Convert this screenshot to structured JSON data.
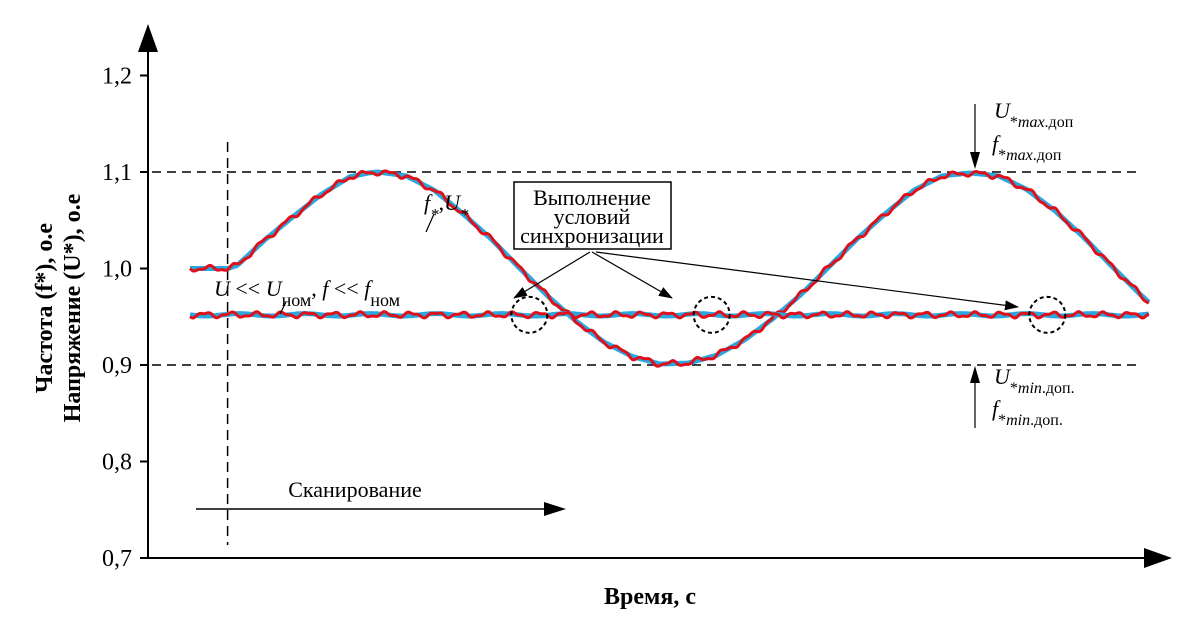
{
  "chart_data": {
    "type": "line",
    "xlabel": "Время, с",
    "ylabel_line1": "Частота (f*), о.е",
    "ylabel_line2": "Напряжение (U*), о.е",
    "y_ticks": [
      "0,7",
      "0,8",
      "0,9",
      "1,0",
      "1,1",
      "1,2"
    ],
    "y_tick_values": [
      0.7,
      0.8,
      0.9,
      1.0,
      1.1,
      1.2
    ],
    "ylim": [
      0.7,
      1.25
    ],
    "xlim": [
      0,
      100
    ],
    "grid": false,
    "reference_lines": [
      {
        "y": 1.1,
        "style": "dashed"
      },
      {
        "y": 0.9,
        "style": "dashed"
      }
    ],
    "scan_start_x": 4,
    "series": [
      {
        "name": "f*, U*",
        "color_reference": "#29a8e0",
        "color_measured": "#e0101b",
        "x": [
          0,
          4,
          5,
          8,
          11,
          14,
          17,
          19,
          20,
          23,
          26,
          29,
          32,
          35,
          38,
          41,
          44,
          47,
          50,
          53,
          56,
          59,
          62,
          65,
          68,
          71,
          74,
          77,
          80,
          83,
          86,
          89,
          92,
          95,
          98,
          101,
          102
        ],
        "values": [
          1.0,
          1.0,
          1.003,
          1.03,
          1.054,
          1.077,
          1.095,
          1.099,
          1.1,
          1.096,
          1.081,
          1.057,
          1.031,
          1.001,
          0.972,
          0.946,
          0.924,
          0.909,
          0.901,
          0.902,
          0.91,
          0.926,
          0.948,
          0.973,
          1.002,
          1.031,
          1.057,
          1.081,
          1.096,
          1.099,
          1.096,
          1.082,
          1.06,
          1.033,
          1.003,
          0.974,
          0.965
        ]
      },
      {
        "name": "U << Uном, f << fном",
        "color_reference": "#29a8e0",
        "color_measured": "#e0101b",
        "x": [
          0,
          102
        ],
        "values": [
          0.952,
          0.952
        ]
      }
    ],
    "sync_points": [
      {
        "x": 36.1,
        "y": 0.952
      },
      {
        "x": 55.5,
        "y": 0.952
      },
      {
        "x": 91.2,
        "y": 0.952
      }
    ]
  },
  "annotations": {
    "series_label_f": "f",
    "series_label_sub": "*",
    "series_label_sep": ",",
    "series_label_u": "U",
    "low_label_U": "U",
    "low_label_lt1": " << ",
    "low_label_Unom_main": "U",
    "low_label_Unom_sub": "ном",
    "low_label_sep": ", ",
    "low_label_f": "f",
    "low_label_lt2": " << ",
    "low_label_fnom_main": "f",
    "low_label_fnom_sub": "ном",
    "sync_box_lines": [
      "Выполнение",
      "условий",
      "синхронизации"
    ],
    "scan_label": "Сканирование",
    "max_U_main": "U",
    "max_U_sub_star": "*",
    "max_U_sub_max": "max",
    "max_U_sub_dop": ".доп",
    "max_f_main": "f",
    "max_f_sub_star": "*",
    "max_f_sub_max": "max",
    "max_f_sub_dop": ".доп",
    "min_U_main": "U",
    "min_U_sub_star": "*",
    "min_U_sub_min": "min",
    "min_U_sub_dop": ".доп.",
    "min_f_main": "f",
    "min_f_sub_star": "*",
    "min_f_sub_min": "min",
    "min_f_sub_dop": ".доп."
  }
}
